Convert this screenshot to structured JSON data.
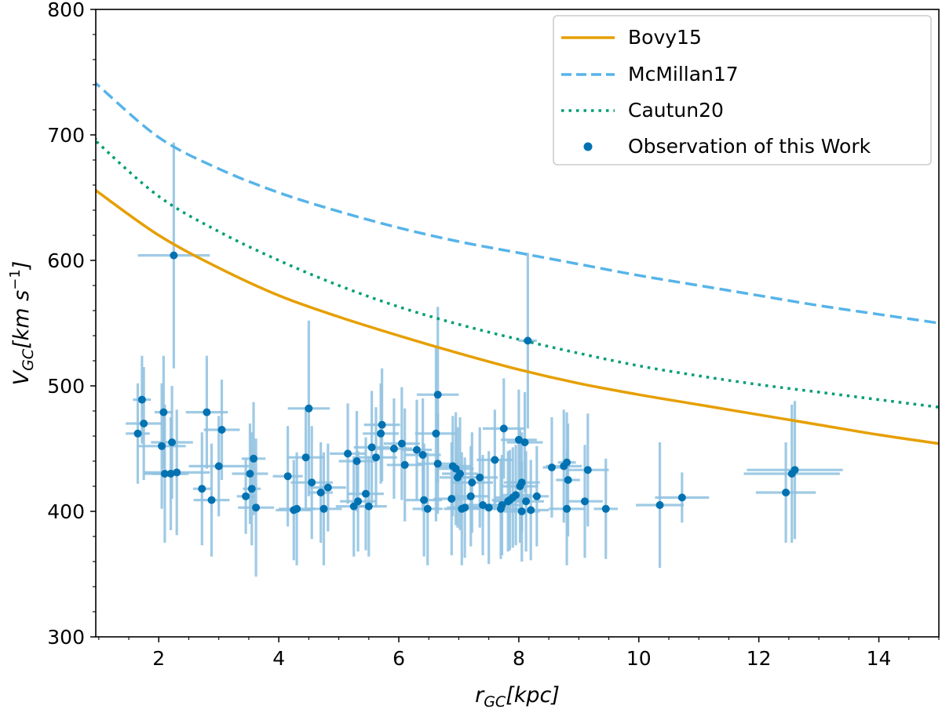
{
  "chart_data": {
    "type": "scatter",
    "title": "",
    "xlabel_main": "r",
    "xlabel_sub": "GC",
    "xlabel_unit": "[kpc]",
    "ylabel_main": "V",
    "ylabel_sub": "GC",
    "ylabel_unit": "[km s",
    "ylabel_exp": "−1",
    "ylabel_close": "]",
    "xlim": [
      0.95,
      15.0
    ],
    "ylim": [
      300,
      800
    ],
    "xticks": [
      2,
      4,
      6,
      8,
      10,
      12,
      14
    ],
    "xtick_labels": [
      "2",
      "4",
      "6",
      "8",
      "10",
      "12",
      "14"
    ],
    "yticks": [
      300,
      400,
      500,
      600,
      700,
      800
    ],
    "ytick_labels": [
      "300",
      "400",
      "500",
      "600",
      "700",
      "800"
    ],
    "legend_position": "top-right",
    "colors": {
      "bovy": "#e69f00",
      "mcmillan": "#56b4e9",
      "cautun": "#009e73",
      "obs": "#0072b2",
      "err": "#8ec1e0"
    },
    "models": [
      {
        "name": "Bovy15",
        "style": "solid",
        "x": [
          0.95,
          1,
          2,
          3,
          4,
          5,
          6,
          7,
          8,
          9,
          10,
          11,
          12,
          13,
          14,
          15
        ],
        "y": [
          656,
          654,
          620,
          594,
          572,
          555,
          540,
          526,
          513,
          502,
          493,
          485,
          477,
          469,
          461,
          454
        ]
      },
      {
        "name": "McMillan17",
        "style": "dashed",
        "x": [
          0.95,
          1,
          2,
          3,
          4,
          5,
          6,
          7,
          8,
          9,
          10,
          11,
          12,
          13,
          14,
          15
        ],
        "y": [
          741,
          739,
          698,
          673,
          654,
          639,
          626,
          615,
          606,
          597,
          588,
          580,
          572,
          564,
          557,
          550
        ]
      },
      {
        "name": "Cautun20",
        "style": "dotted",
        "x": [
          0.95,
          1,
          2,
          3,
          4,
          5,
          6,
          7,
          8,
          9,
          10,
          11,
          12,
          13,
          14,
          15
        ],
        "y": [
          697,
          693,
          651,
          623,
          600,
          580,
          563,
          549,
          537,
          526,
          516,
          508,
          501,
          495,
          489,
          483
        ]
      }
    ],
    "observations": {
      "name": "Observation of this Work",
      "points": [
        [
          1.65,
          462,
          0.2,
          40
        ],
        [
          1.72,
          489,
          0.15,
          35
        ],
        [
          1.75,
          470,
          0.3,
          45
        ],
        [
          2.05,
          452,
          0.4,
          50
        ],
        [
          2.08,
          479,
          0.15,
          45
        ],
        [
          2.1,
          430,
          0.35,
          55
        ],
        [
          2.2,
          430,
          0.3,
          45
        ],
        [
          2.22,
          455,
          0.35,
          45
        ],
        [
          2.25,
          604,
          0.6,
          90
        ],
        [
          2.3,
          431,
          0.55,
          50
        ],
        [
          2.72,
          418,
          0.15,
          45
        ],
        [
          2.8,
          479,
          0.35,
          45
        ],
        [
          2.88,
          409,
          0.3,
          45
        ],
        [
          3.0,
          436,
          0.5,
          40
        ],
        [
          3.05,
          465,
          0.3,
          40
        ],
        [
          3.45,
          412,
          0.15,
          30
        ],
        [
          3.52,
          430,
          0.3,
          40
        ],
        [
          3.55,
          418,
          0.15,
          45
        ],
        [
          3.58,
          442,
          0.2,
          45
        ],
        [
          3.62,
          403,
          0.3,
          55
        ],
        [
          4.15,
          428,
          0.25,
          40
        ],
        [
          4.25,
          401,
          0.3,
          40
        ],
        [
          4.3,
          402,
          0.3,
          45
        ],
        [
          4.45,
          443,
          0.3,
          40
        ],
        [
          4.5,
          482,
          0.35,
          70
        ],
        [
          4.55,
          423,
          0.35,
          45
        ],
        [
          4.7,
          415,
          0.2,
          40
        ],
        [
          4.75,
          402,
          0.3,
          45
        ],
        [
          4.82,
          419,
          0.3,
          35
        ],
        [
          5.15,
          446,
          0.3,
          40
        ],
        [
          5.25,
          404,
          0.3,
          40
        ],
        [
          5.3,
          440,
          0.3,
          40
        ],
        [
          5.32,
          408,
          0.3,
          40
        ],
        [
          5.45,
          414,
          0.3,
          45
        ],
        [
          5.5,
          404,
          0.3,
          40
        ],
        [
          5.55,
          451,
          0.3,
          45
        ],
        [
          5.62,
          443,
          0.35,
          40
        ],
        [
          5.7,
          462,
          0.3,
          40
        ],
        [
          5.72,
          469,
          0.3,
          45
        ],
        [
          5.92,
          450,
          0.3,
          40
        ],
        [
          6.05,
          454,
          0.3,
          45
        ],
        [
          6.1,
          437,
          0.3,
          45
        ],
        [
          6.3,
          449,
          0.25,
          40
        ],
        [
          6.4,
          445,
          0.3,
          45
        ],
        [
          6.42,
          409,
          0.3,
          45
        ],
        [
          6.48,
          402,
          0.25,
          45
        ],
        [
          6.62,
          462,
          0.35,
          70
        ],
        [
          6.65,
          438,
          0.35,
          40
        ],
        [
          6.65,
          493,
          0.35,
          70
        ],
        [
          6.88,
          410,
          0.3,
          45
        ],
        [
          6.9,
          436,
          0.3,
          40
        ],
        [
          6.95,
          434,
          0.3,
          45
        ],
        [
          6.98,
          427,
          0.3,
          40
        ],
        [
          7.02,
          430,
          0.3,
          45
        ],
        [
          7.05,
          402,
          0.3,
          45
        ],
        [
          7.1,
          403,
          0.3,
          40
        ],
        [
          7.2,
          412,
          0.3,
          40
        ],
        [
          7.22,
          423,
          0.35,
          40
        ],
        [
          7.35,
          427,
          0.3,
          40
        ],
        [
          7.4,
          405,
          0.3,
          40
        ],
        [
          7.5,
          403,
          0.35,
          45
        ],
        [
          7.6,
          441,
          0.3,
          40
        ],
        [
          7.7,
          402,
          0.3,
          40
        ],
        [
          7.72,
          405,
          0.3,
          40
        ],
        [
          7.75,
          466,
          0.35,
          40
        ],
        [
          7.82,
          408,
          0.25,
          40
        ],
        [
          7.85,
          409,
          0.3,
          40
        ],
        [
          7.9,
          411,
          0.3,
          40
        ],
        [
          7.95,
          413,
          0.25,
          40
        ],
        [
          8.0,
          457,
          0.3,
          40
        ],
        [
          8.02,
          420,
          0.3,
          45
        ],
        [
          8.05,
          423,
          0.3,
          40
        ],
        [
          8.05,
          400,
          0.3,
          40
        ],
        [
          8.1,
          455,
          0.3,
          40
        ],
        [
          8.12,
          408,
          0.3,
          40
        ],
        [
          8.15,
          536,
          0.15,
          70
        ],
        [
          8.2,
          401,
          0.3,
          40
        ],
        [
          8.3,
          412,
          0.2,
          40
        ],
        [
          8.55,
          435,
          0.15,
          40
        ],
        [
          8.75,
          436,
          0.3,
          45
        ],
        [
          8.8,
          439,
          0.15,
          40
        ],
        [
          8.8,
          402,
          0.3,
          45
        ],
        [
          8.82,
          425,
          0.2,
          45
        ],
        [
          9.1,
          408,
          0.3,
          45
        ],
        [
          9.15,
          433,
          0.35,
          45
        ],
        [
          9.45,
          402,
          0.2,
          40
        ],
        [
          10.35,
          405,
          0.4,
          50
        ],
        [
          10.72,
          411,
          0.45,
          20
        ],
        [
          12.45,
          415,
          0.5,
          40
        ],
        [
          12.55,
          430,
          0.8,
          55
        ],
        [
          12.6,
          433,
          0.8,
          55
        ]
      ]
    }
  }
}
